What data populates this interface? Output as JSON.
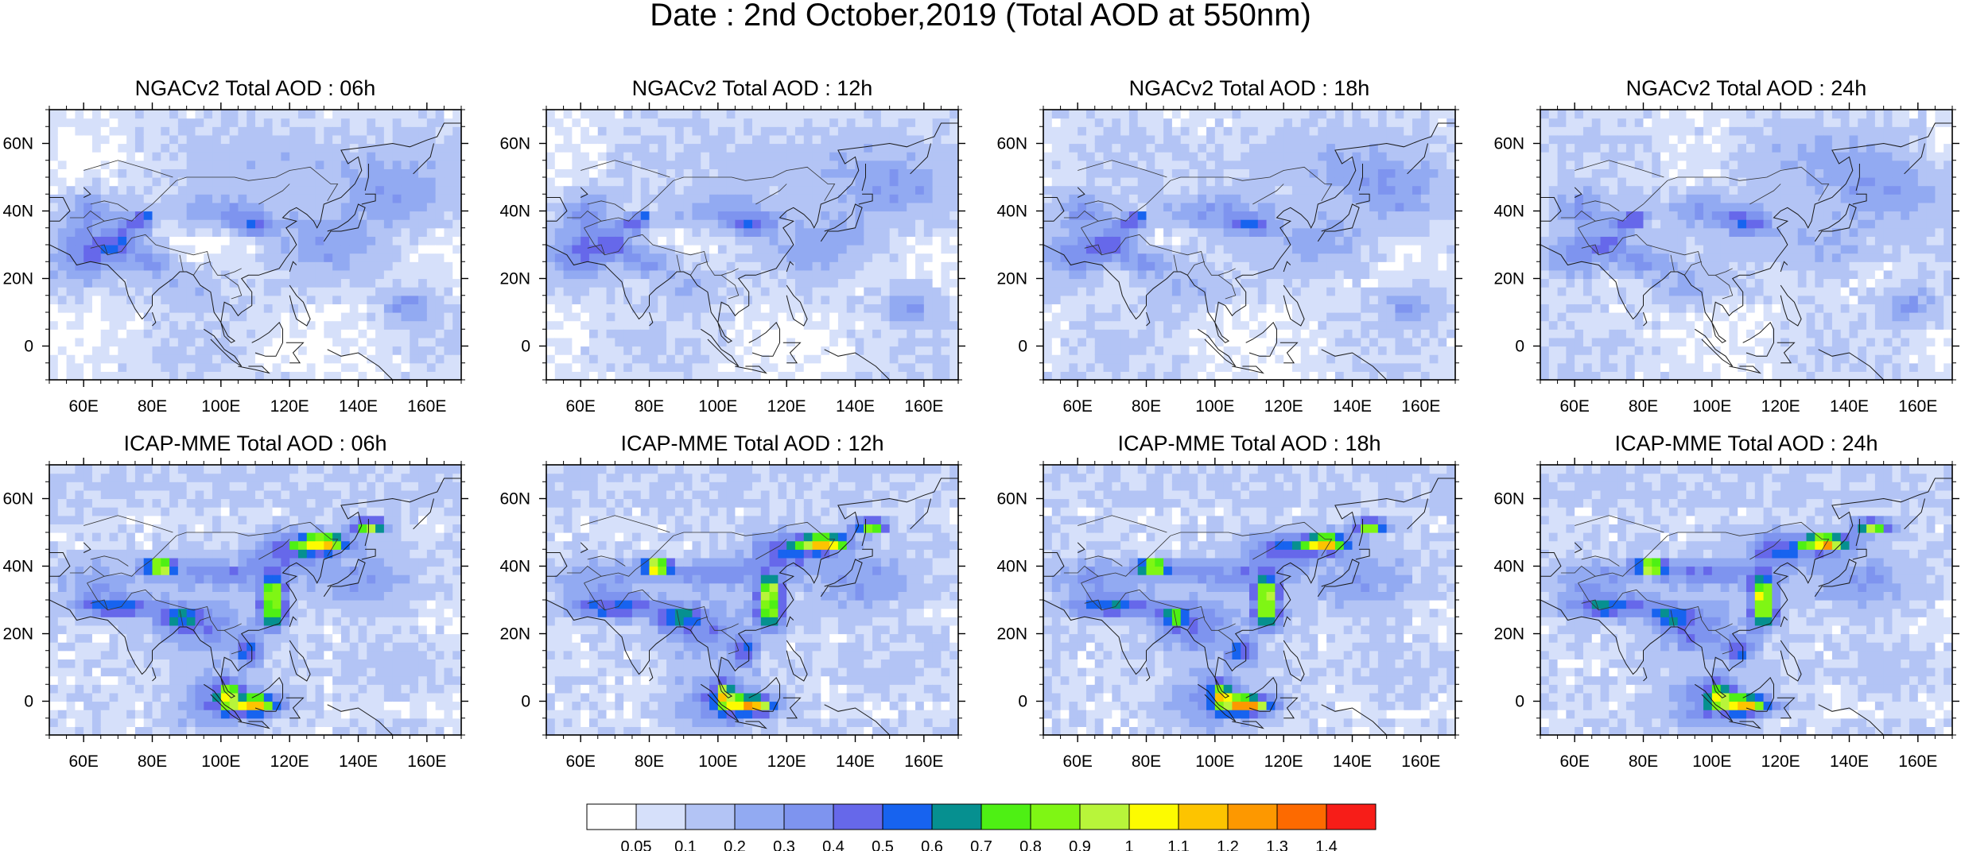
{
  "title": "Date : 2nd October,2019 (Total AOD at 550nm)",
  "rows": [
    {
      "model": "NGACv2",
      "panels": [
        {
          "title": "NGACv2 Total AOD : 06h"
        },
        {
          "title": "NGACv2 Total AOD : 12h"
        },
        {
          "title": "NGACv2 Total AOD : 18h"
        },
        {
          "title": "NGACv2 Total AOD : 24h"
        }
      ]
    },
    {
      "model": "ICAP-MME",
      "panels": [
        {
          "title": "ICAP-MME Total AOD : 06h"
        },
        {
          "title": "ICAP-MME Total AOD : 12h"
        },
        {
          "title": "ICAP-MME Total AOD : 18h"
        },
        {
          "title": "ICAP-MME Total AOD : 24h"
        }
      ]
    }
  ],
  "map_extent": {
    "lon": [
      50,
      170
    ],
    "lat": [
      -10,
      70
    ]
  },
  "lon_ticks": [
    {
      "value": 60,
      "label": "60E"
    },
    {
      "value": 80,
      "label": "80E"
    },
    {
      "value": 100,
      "label": "100E"
    },
    {
      "value": 120,
      "label": "120E"
    },
    {
      "value": 140,
      "label": "140E"
    },
    {
      "value": 160,
      "label": "160E"
    }
  ],
  "lat_ticks": [
    {
      "value": 60,
      "label": "60N"
    },
    {
      "value": 40,
      "label": "40N"
    },
    {
      "value": 20,
      "label": "20N"
    },
    {
      "value": 0,
      "label": "0"
    }
  ],
  "colorbar": {
    "colors": [
      "#ffffff",
      "#d6e0fa",
      "#b3c4f5",
      "#92aaf2",
      "#7e94ef",
      "#6668ea",
      "#1763ef",
      "#069090",
      "#4ef014",
      "#7ff614",
      "#b8f53a",
      "#fdfb00",
      "#fdc400",
      "#fd9800",
      "#fd6a00",
      "#f71d18"
    ],
    "labels": [
      "0.05",
      "0.1",
      "0.2",
      "0.3",
      "0.4",
      "0.5",
      "0.6",
      "0.7",
      "0.8",
      "0.9",
      "1",
      "1.1",
      "1.2",
      "1.3",
      "1.4"
    ]
  },
  "hotspots": {
    "NGACv2": [
      {
        "lon": 78,
        "lat": 38,
        "v": 0.55,
        "rx": 2,
        "ry": 1.5
      },
      {
        "lon": 75,
        "lat": 36,
        "v": 0.32,
        "rx": 5,
        "ry": 3
      },
      {
        "lon": 70,
        "lat": 30,
        "v": 0.36,
        "rx": 6,
        "ry": 4
      },
      {
        "lon": 60,
        "lat": 27,
        "v": 0.3,
        "rx": 9,
        "ry": 7
      },
      {
        "lon": 80,
        "lat": 25,
        "v": 0.28,
        "rx": 7,
        "ry": 4
      },
      {
        "lon": 110,
        "lat": 36,
        "v": 0.33,
        "rx": 6,
        "ry": 3
      },
      {
        "lon": 100,
        "lat": 40,
        "v": 0.22,
        "rx": 15,
        "ry": 5
      },
      {
        "lon": 62,
        "lat": 40,
        "v": 0.26,
        "rx": 7,
        "ry": 6
      },
      {
        "lon": 150,
        "lat": 45,
        "v": 0.2,
        "rx": 15,
        "ry": 10
      },
      {
        "lon": 155,
        "lat": 12,
        "v": 0.25,
        "rx": 7,
        "ry": 5
      },
      {
        "lon": 130,
        "lat": 30,
        "v": 0.18,
        "rx": 14,
        "ry": 8
      },
      {
        "lon": 92,
        "lat": 18,
        "v": 0.14,
        "rx": 10,
        "ry": 6
      },
      {
        "lon": 125,
        "lat": 55,
        "v": 0.12,
        "rx": 25,
        "ry": 10
      }
    ],
    "ICAP-MME": [
      {
        "lon": 82,
        "lat": 40,
        "v": 1.2,
        "rx": 4,
        "ry": 1.8
      },
      {
        "lon": 130,
        "lat": 47,
        "v": 1.0,
        "rx": 7,
        "ry": 2.5
      },
      {
        "lon": 143,
        "lat": 52,
        "v": 0.85,
        "rx": 5,
        "ry": 2
      },
      {
        "lon": 115,
        "lat": 32,
        "v": 0.9,
        "rx": 3.5,
        "ry": 5
      },
      {
        "lon": 115,
        "lat": 25,
        "v": 0.6,
        "rx": 4,
        "ry": 4
      },
      {
        "lon": 110,
        "lat": -1,
        "v": 1.0,
        "rx": 7,
        "ry": 2.5
      },
      {
        "lon": 102,
        "lat": 2,
        "v": 0.6,
        "rx": 3,
        "ry": 4
      },
      {
        "lon": 70,
        "lat": 28,
        "v": 0.5,
        "rx": 12,
        "ry": 3
      },
      {
        "lon": 88,
        "lat": 25,
        "v": 0.45,
        "rx": 5,
        "ry": 3
      },
      {
        "lon": 108,
        "lat": 15,
        "v": 0.45,
        "rx": 4,
        "ry": 4
      },
      {
        "lon": 100,
        "lat": 38,
        "v": 0.3,
        "rx": 18,
        "ry": 4
      },
      {
        "lon": 120,
        "lat": 45,
        "v": 0.4,
        "rx": 10,
        "ry": 5
      },
      {
        "lon": 95,
        "lat": 22,
        "v": 0.3,
        "rx": 12,
        "ry": 8
      },
      {
        "lon": 100,
        "lat": 0,
        "v": 0.3,
        "rx": 12,
        "ry": 8
      },
      {
        "lon": 65,
        "lat": 36,
        "v": 0.22,
        "rx": 12,
        "ry": 6
      },
      {
        "lon": 140,
        "lat": 35,
        "v": 0.2,
        "rx": 15,
        "ry": 10
      },
      {
        "lon": 150,
        "lat": 10,
        "v": 0.1,
        "rx": 20,
        "ry": 10
      }
    ]
  }
}
